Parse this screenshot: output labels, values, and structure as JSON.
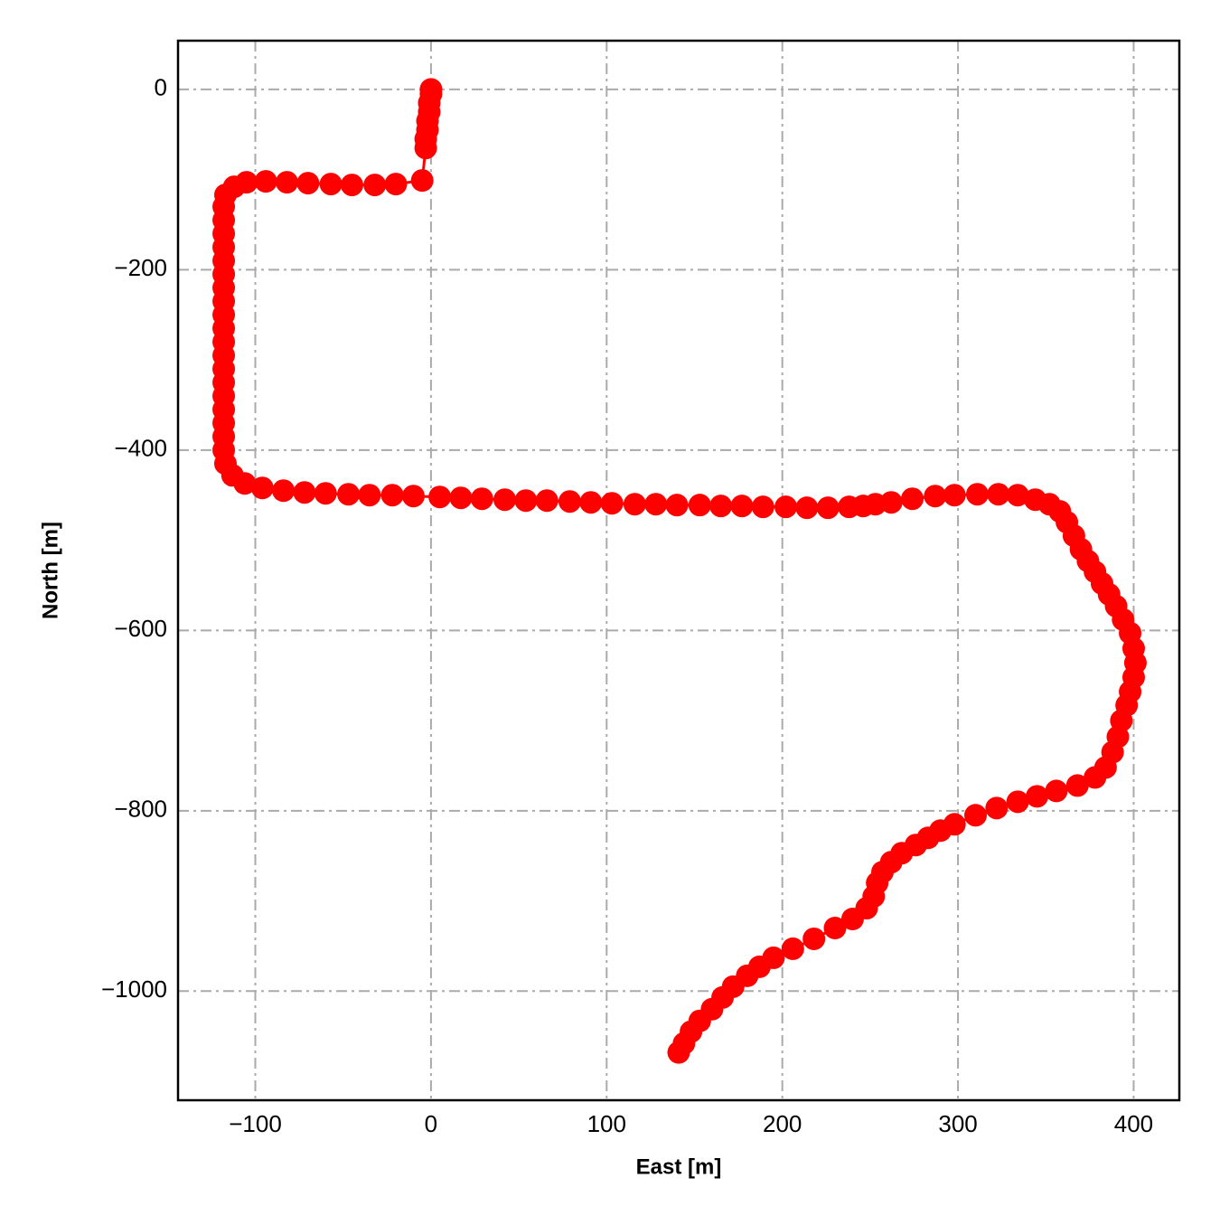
{
  "chart_data": {
    "type": "line",
    "xlabel": "East [m]",
    "ylabel": "North [m]",
    "grid": true,
    "markers": true,
    "xlim": [
      -144,
      426
    ],
    "ylim": [
      -1121,
      54
    ],
    "xticks": [
      {
        "value": -100,
        "label": "−100"
      },
      0,
      100,
      200,
      300,
      400
    ],
    "yticks": [
      0,
      {
        "value": -200,
        "label": "−200"
      },
      {
        "value": -400,
        "label": "−400"
      },
      {
        "value": -600,
        "label": "−600"
      },
      {
        "value": -800,
        "label": "−800"
      },
      {
        "value": -1000,
        "label": "−1000"
      }
    ],
    "x": [
      0,
      0,
      -1,
      -1,
      -2,
      -2,
      -3,
      -3,
      -5,
      -20,
      -32,
      -45,
      -57,
      -70,
      -82,
      -94,
      -105,
      -112,
      -117,
      -118,
      -118,
      -118,
      -118,
      -118,
      -118,
      -118,
      -118,
      -118,
      -118,
      -118,
      -118,
      -118,
      -118,
      -118,
      -118,
      -118,
      -118,
      -118,
      -117,
      -113,
      -106,
      -96,
      -84,
      -72,
      -60,
      -47,
      -35,
      -22,
      -10,
      5,
      17,
      29,
      42,
      54,
      66,
      79,
      91,
      103,
      116,
      128,
      140,
      153,
      165,
      177,
      189,
      202,
      214,
      226,
      238,
      246,
      253,
      262,
      274,
      287,
      298,
      311,
      323,
      334,
      344,
      352,
      358,
      362,
      366,
      370,
      374,
      378,
      382,
      386,
      390,
      394,
      398,
      400,
      401,
      400,
      398,
      396,
      393,
      391,
      388,
      384,
      378,
      368,
      356,
      345,
      334,
      322,
      310,
      298,
      290,
      283,
      276,
      268,
      262,
      257,
      254,
      252,
      248,
      240,
      230,
      218,
      206,
      195,
      187,
      180,
      172,
      166,
      160,
      153,
      148,
      144,
      141
    ],
    "series": [
      {
        "color": "#ff0000",
        "values": [
          0,
          -5,
          -15,
          -25,
          -35,
          -45,
          -55,
          -65,
          -101,
          -105,
          -106,
          -106,
          -105,
          -104,
          -103,
          -102,
          -103,
          -108,
          -117,
          -130,
          -145,
          -160,
          -175,
          -190,
          -205,
          -220,
          -235,
          -250,
          -265,
          -280,
          -295,
          -310,
          -325,
          -340,
          -355,
          -370,
          -385,
          -400,
          -415,
          -428,
          -437,
          -442,
          -445,
          -447,
          -448,
          -449,
          -450,
          -450,
          -451,
          -452,
          -453,
          -454,
          -455,
          -456,
          -456,
          -457,
          -458,
          -459,
          -460,
          -460,
          -461,
          -461,
          -462,
          -462,
          -463,
          -463,
          -464,
          -464,
          -463,
          -462,
          -460,
          -458,
          -454,
          -451,
          -450,
          -449,
          -449,
          -450,
          -455,
          -460,
          -468,
          -480,
          -495,
          -510,
          -523,
          -535,
          -548,
          -560,
          -573,
          -588,
          -603,
          -620,
          -636,
          -652,
          -668,
          -683,
          -700,
          -718,
          -735,
          -752,
          -763,
          -772,
          -778,
          -784,
          -790,
          -797,
          -805,
          -815,
          -822,
          -830,
          -838,
          -847,
          -857,
          -868,
          -880,
          -895,
          -908,
          -920,
          -930,
          -942,
          -953,
          -963,
          -973,
          -983,
          -995,
          -1007,
          -1020,
          -1033,
          -1045,
          -1058,
          -1068
        ]
      }
    ]
  }
}
